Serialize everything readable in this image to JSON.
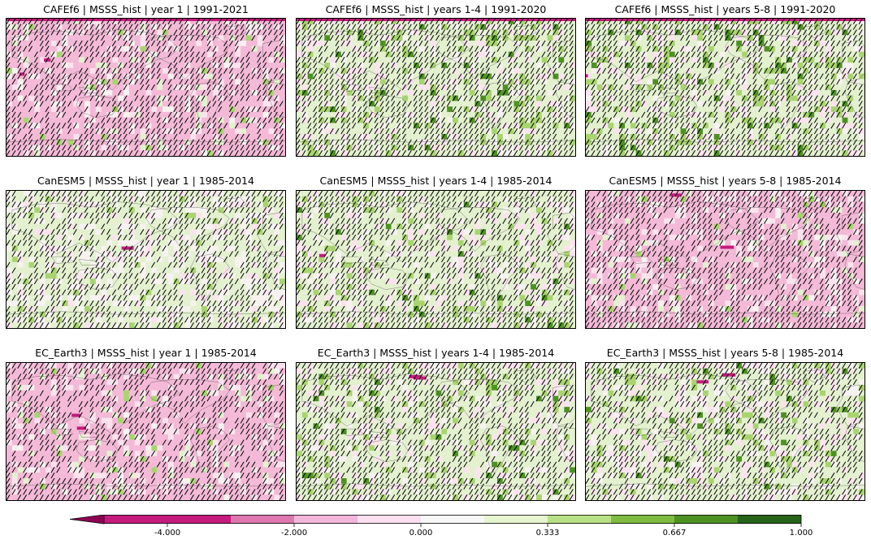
{
  "panels": [
    {
      "title": "CAFEf6 | MSSS_hist | year 1 | 1991-2021",
      "model": "CAFEf6",
      "lead": "year 1"
    },
    {
      "title": "CAFEf6 | MSSS_hist | years 1-4 | 1991-2020",
      "model": "CAFEf6",
      "lead": "years 1-4"
    },
    {
      "title": "CAFEf6 | MSSS_hist | years 5-8 | 1991-2020",
      "model": "CAFEf6",
      "lead": "years 5-8"
    },
    {
      "title": "CanESM5 | MSSS_hist | year 1 | 1985-2014",
      "model": "CanESM5",
      "lead": "year 1"
    },
    {
      "title": "CanESM5 | MSSS_hist | years 1-4 | 1985-2014",
      "model": "CanESM5",
      "lead": "years 1-4"
    },
    {
      "title": "CanESM5 | MSSS_hist | years 5-8 | 1985-2014",
      "model": "CanESM5",
      "lead": "years 5-8"
    },
    {
      "title": "EC_Earth3 | MSSS_hist | year 1 | 1985-2014",
      "model": "EC_Earth3",
      "lead": "year 1"
    },
    {
      "title": "EC_Earth3 | MSSS_hist | years 1-4 | 1985-2014",
      "model": "EC_Earth3",
      "lead": "years 1-4"
    },
    {
      "title": "EC_Earth3 | MSSS_hist | years 5-8 | 1985-2014",
      "model": "EC_Earth3",
      "lead": "years 5-8"
    }
  ],
  "colorbar": {
    "tick_labels": [
      "-4.000",
      "-2.000",
      "0.000",
      "0.333",
      "0.667",
      "1.000"
    ],
    "colors": [
      "#8e0152",
      "#c51b7d",
      "#de77ae",
      "#f1b6da",
      "#fde0ef",
      "#f7f7f7",
      "#e6f5d0",
      "#b8e186",
      "#7fbc41",
      "#4d9221",
      "#276419",
      "#1a4e0f"
    ],
    "extend": "min"
  },
  "map_colors": {
    "neutral": "#f6f2f0",
    "light_pink": "#fbe3ee",
    "pink": "#f3b9d6",
    "magenta": "#c51b7d",
    "light_green": "#e3f1cf",
    "green": "#a8d46f",
    "dark_green": "#4d9221",
    "hatch": "#000000",
    "coast": "#333333"
  }
}
